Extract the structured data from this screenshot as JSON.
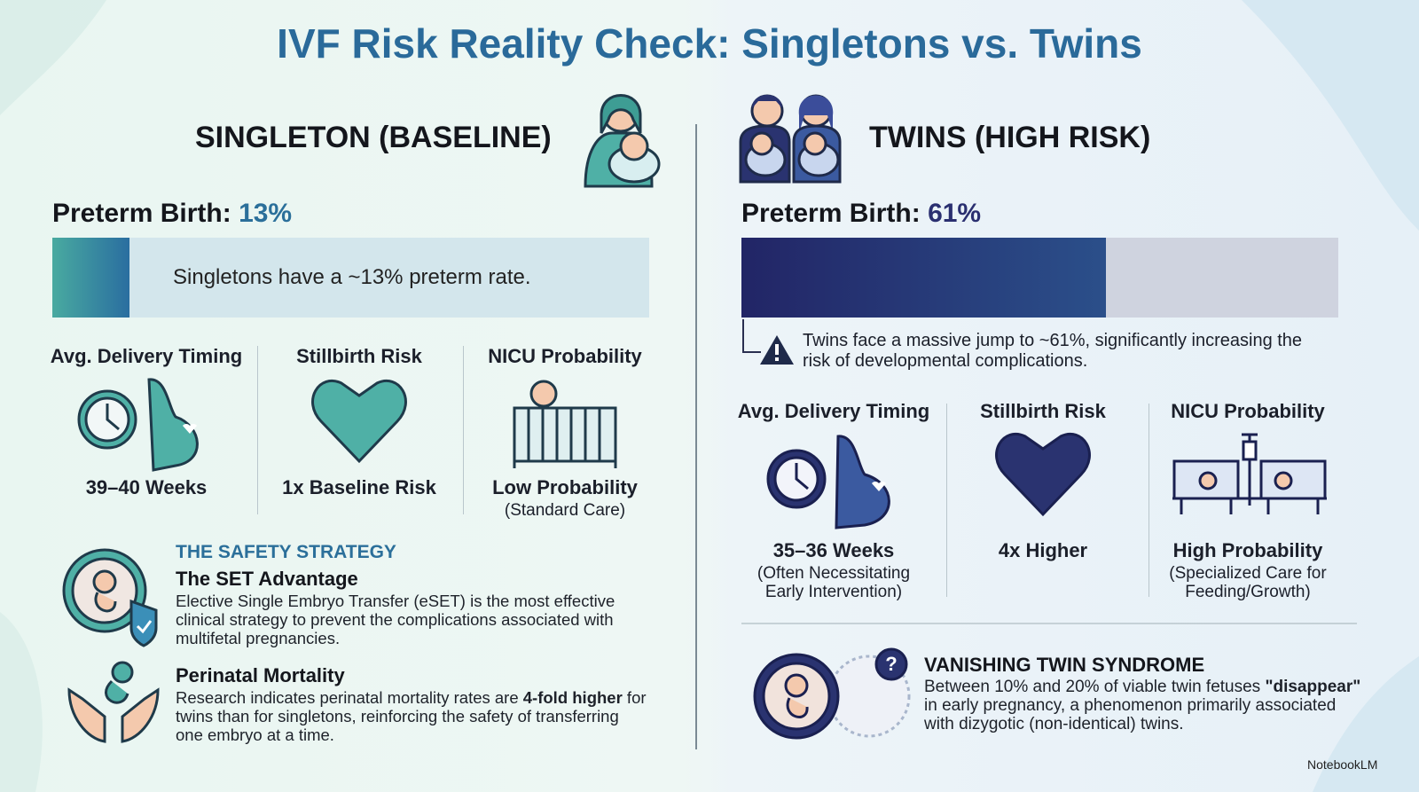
{
  "title": "IVF Risk Reality Check: Singletons vs. Twins",
  "singleton": {
    "heading": "SINGLETON (BASELINE)",
    "preterm": {
      "label": "Preterm Birth:",
      "rate": {
        "value": 13,
        "label": "13%"
      },
      "note": "Singletons have a ~13% preterm rate."
    },
    "metrics": [
      {
        "title": "Avg. Delivery Timing",
        "value": "39–40 Weeks",
        "details": []
      },
      {
        "title": "Stillbirth Risk",
        "value": "1x Baseline Risk",
        "details": []
      },
      {
        "title": "NICU Probability",
        "value": "Low Probability",
        "details": [
          "(Standard Care)"
        ]
      }
    ],
    "strategy": {
      "eyebrow": "THE SAFETY STRATEGY",
      "items": [
        {
          "title": "The SET Advantage",
          "text": [
            {
              "text": "Elective Single Embryo Transfer (eSET) is the most effective clinical strategy to prevent the complications associated with multifetal pregnancies.",
              "bold": false
            }
          ]
        },
        {
          "title": "Perinatal Mortality",
          "text": [
            {
              "text": "Research indicates perinatal mortality rates are ",
              "bold": false
            },
            {
              "text": "4-fold higher",
              "bold": true
            },
            {
              "text": " for twins than for singletons, reinforcing the safety of transferring one embryo at a time.",
              "bold": false
            }
          ]
        }
      ]
    }
  },
  "twins": {
    "heading": "TWINS (HIGH RISK)",
    "preterm": {
      "label": "Preterm Birth:",
      "rate": {
        "value": 61,
        "label": "61%"
      },
      "note": "Twins face a massive jump to ~61%, significantly increasing the risk of developmental complications."
    },
    "metrics": [
      {
        "title": "Avg. Delivery Timing",
        "value": "35–36 Weeks",
        "details": [
          "(Often Necessitating",
          "Early Intervention)"
        ]
      },
      {
        "title": "Stillbirth Risk",
        "value": "4x Higher",
        "details": []
      },
      {
        "title": "NICU Probability",
        "value": "High Probability",
        "details": [
          "(Specialized Care for",
          "Feeding/Growth)"
        ]
      }
    ],
    "vanishing": {
      "title": "VANISHING TWIN SYNDROME",
      "text": [
        {
          "text": "Between 10% and 20% of viable twin fetuses ",
          "bold": false
        },
        {
          "text": "\"disappear\"",
          "bold": true
        },
        {
          "text": " in early pregnancy, a phenomenon primarily associated with dizygotic (non-identical) twins.",
          "bold": false
        }
      ]
    }
  },
  "brand": "NotebookLM"
}
